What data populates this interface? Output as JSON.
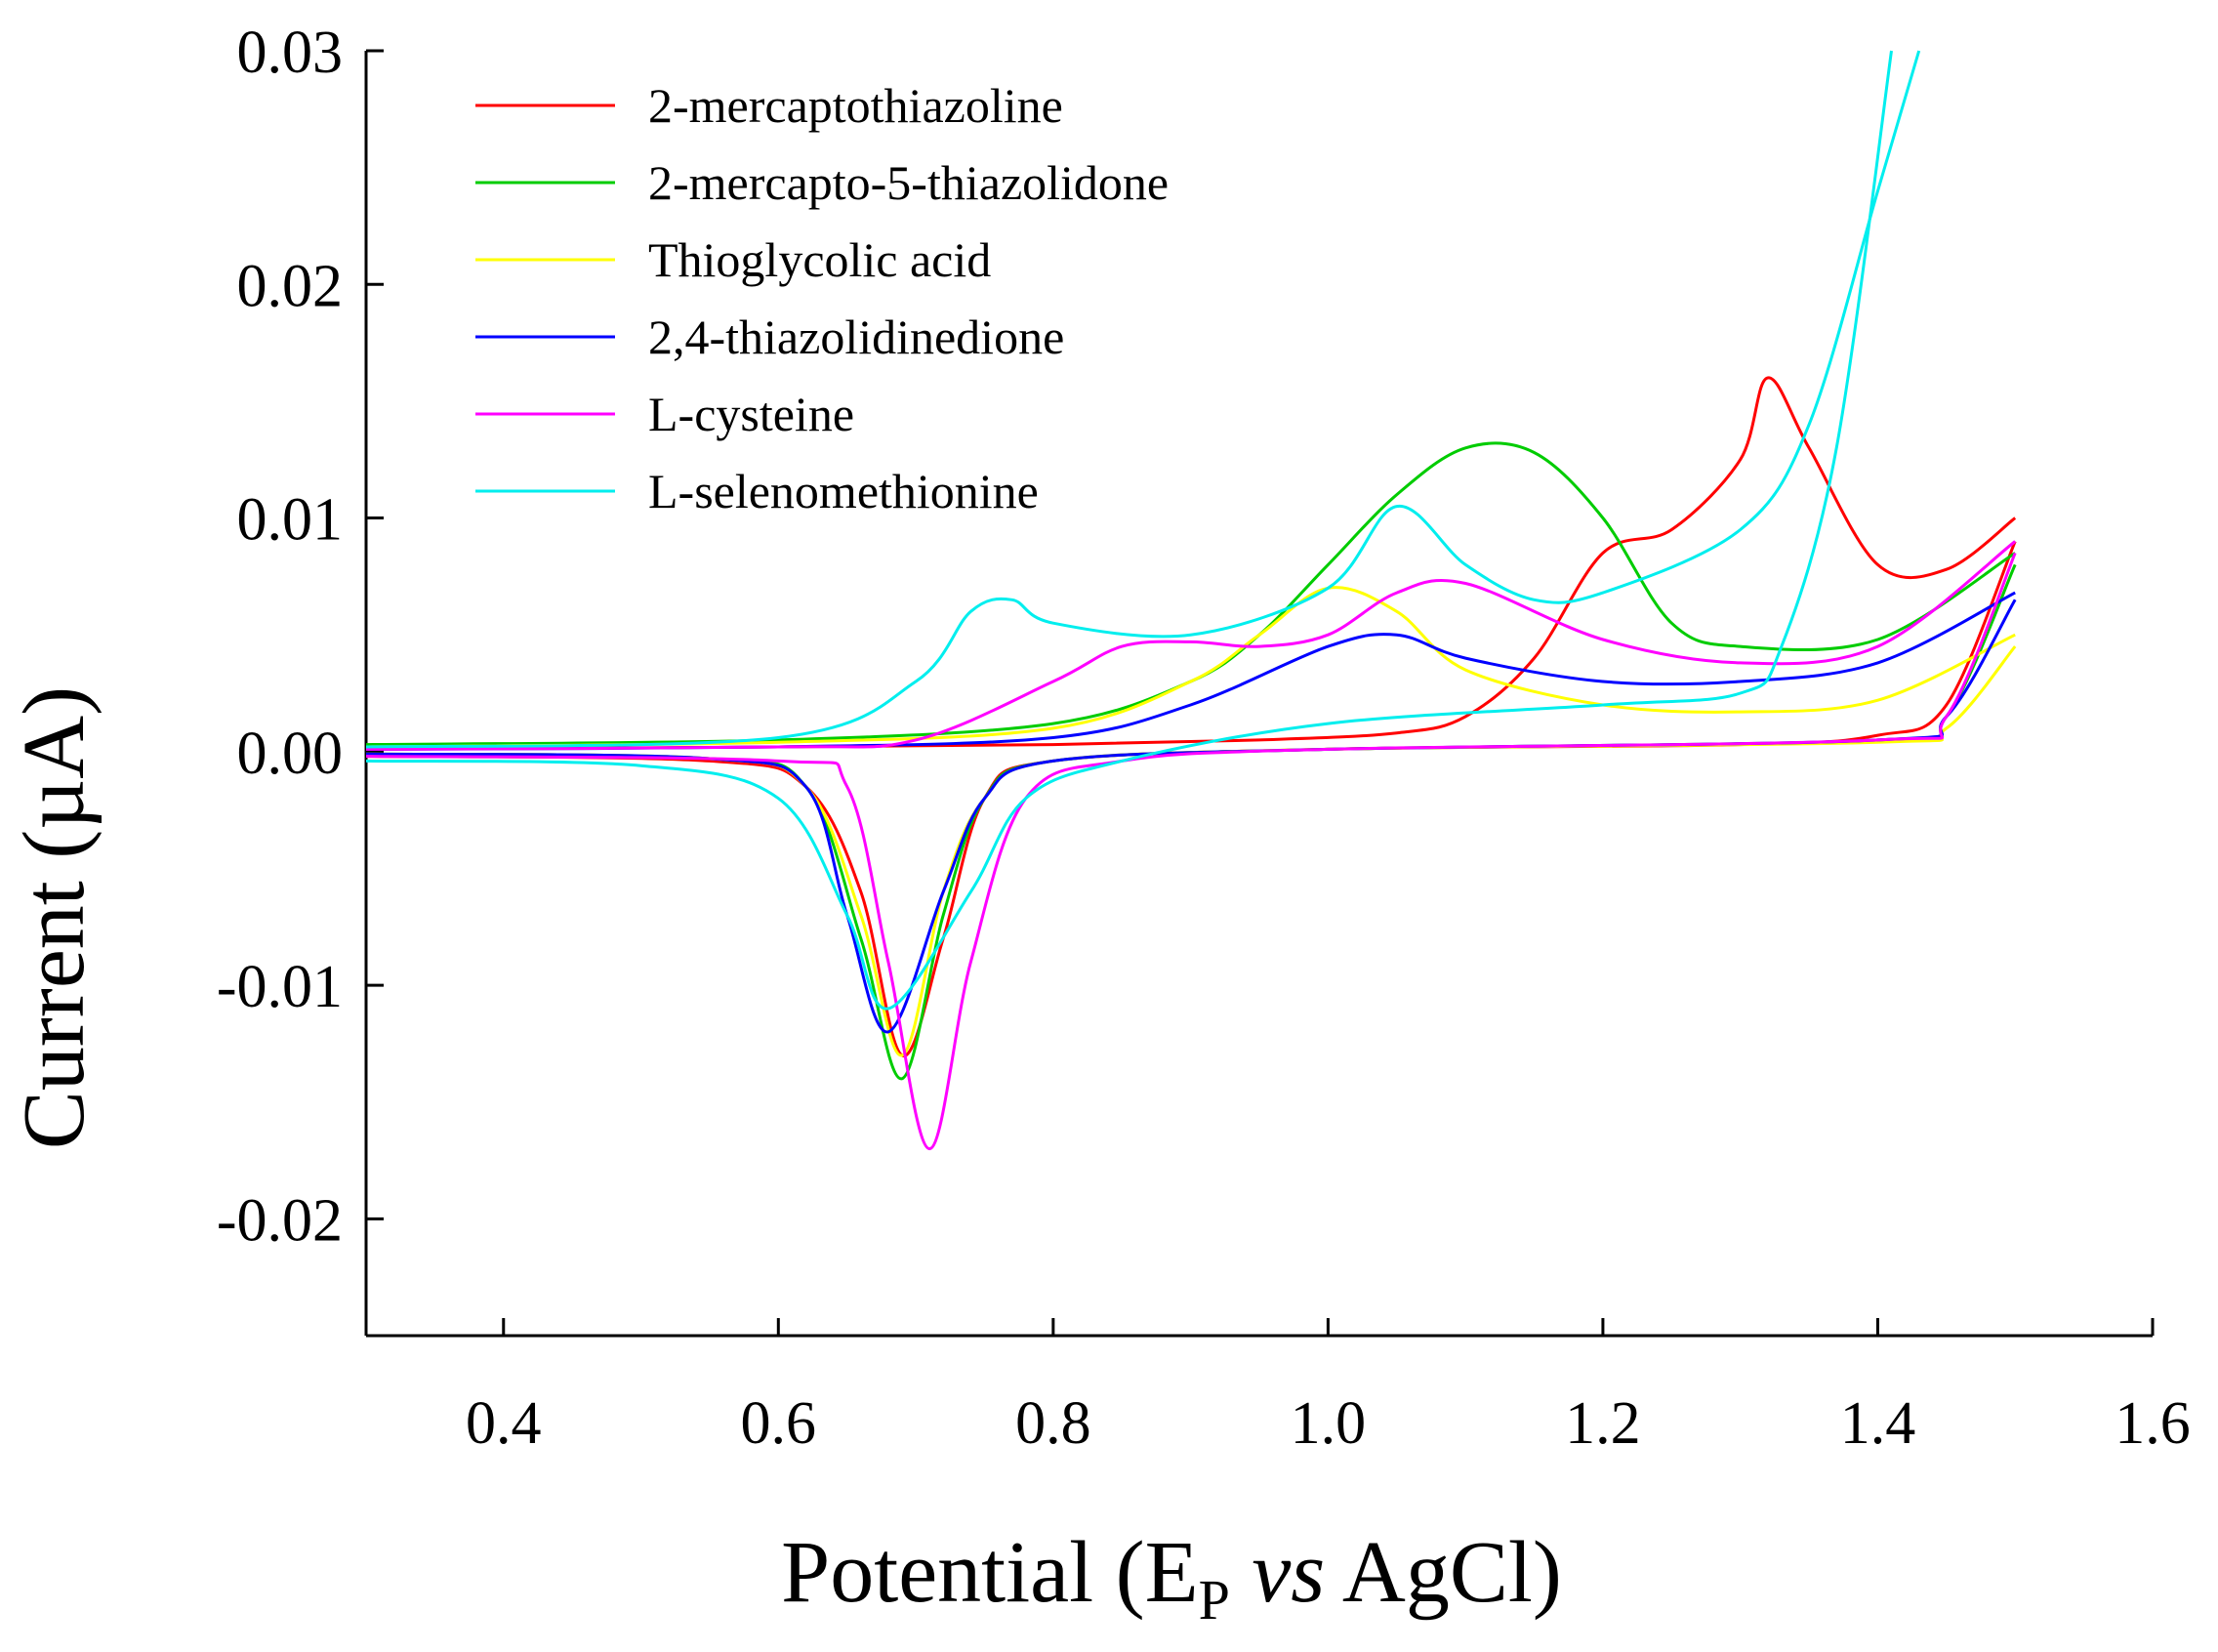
{
  "chart_data": {
    "type": "line",
    "title": "",
    "xlabel_parts": {
      "main": "Potential (E",
      "sub": "P",
      "italic": "vs",
      "end": "AgCl)"
    },
    "ylabel": "Current (µA)",
    "xlim": [
      0.3,
      1.6
    ],
    "ylim": [
      -0.025,
      0.03
    ],
    "x_ticks": [
      "0.4",
      "0.6",
      "0.8",
      "1.0",
      "1.2",
      "1.4",
      "1.6"
    ],
    "y_ticks": [
      "0.03",
      "0.02",
      "0.01",
      "0.00",
      "-0.01",
      "-0.02"
    ],
    "x_tick_values": [
      0.4,
      0.6,
      0.8,
      1.0,
      1.2,
      1.4,
      1.6
    ],
    "y_tick_values": [
      0.03,
      0.02,
      0.01,
      0.0,
      -0.01,
      -0.02
    ],
    "legend_position": "top-left",
    "series": [
      {
        "name": "2-mercaptothiazoline",
        "color": "#ff0000",
        "anodic": [
          [
            0.3,
            0.0001
          ],
          [
            0.6,
            0.0002
          ],
          [
            0.8,
            0.0003
          ],
          [
            0.95,
            0.0005
          ],
          [
            1.05,
            0.0008
          ],
          [
            1.1,
            0.0015
          ],
          [
            1.15,
            0.004
          ],
          [
            1.2,
            0.0085
          ],
          [
            1.25,
            0.0095
          ],
          [
            1.3,
            0.0125
          ],
          [
            1.32,
            0.016
          ],
          [
            1.35,
            0.013
          ],
          [
            1.4,
            0.008
          ],
          [
            1.45,
            0.0078
          ],
          [
            1.5,
            0.01
          ]
        ],
        "cathodic": [
          [
            1.5,
            0.009
          ],
          [
            1.45,
            0.002
          ],
          [
            1.4,
            0.0007
          ],
          [
            1.3,
            0.0003
          ],
          [
            1.0,
            0.0001
          ],
          [
            0.8,
            -0.0004
          ],
          [
            0.75,
            -0.002
          ],
          [
            0.72,
            -0.008
          ],
          [
            0.69,
            -0.013
          ],
          [
            0.66,
            -0.006
          ],
          [
            0.62,
            -0.0015
          ],
          [
            0.55,
            -0.0004
          ],
          [
            0.3,
            -0.0002
          ]
        ]
      },
      {
        "name": "2-mercapto-5-thiazolidone",
        "color": "#00cc00",
        "anodic": [
          [
            0.3,
            0.0003
          ],
          [
            0.6,
            0.0005
          ],
          [
            0.8,
            0.0012
          ],
          [
            0.9,
            0.003
          ],
          [
            0.95,
            0.005
          ],
          [
            1.0,
            0.008
          ],
          [
            1.05,
            0.011
          ],
          [
            1.1,
            0.013
          ],
          [
            1.15,
            0.0128
          ],
          [
            1.2,
            0.01
          ],
          [
            1.25,
            0.0055
          ],
          [
            1.3,
            0.0045
          ],
          [
            1.4,
            0.0048
          ],
          [
            1.5,
            0.0085
          ]
        ],
        "cathodic": [
          [
            1.5,
            0.008
          ],
          [
            1.45,
            0.0015
          ],
          [
            1.4,
            0.0005
          ],
          [
            1.0,
            0.0001
          ],
          [
            0.8,
            -0.0004
          ],
          [
            0.75,
            -0.002
          ],
          [
            0.72,
            -0.007
          ],
          [
            0.69,
            -0.014
          ],
          [
            0.66,
            -0.008
          ],
          [
            0.62,
            -0.0015
          ],
          [
            0.55,
            -0.0003
          ],
          [
            0.3,
            -0.0001
          ]
        ]
      },
      {
        "name": "Thioglycolic acid",
        "color": "#ffff00",
        "anodic": [
          [
            0.3,
            0.0002
          ],
          [
            0.6,
            0.0004
          ],
          [
            0.8,
            0.001
          ],
          [
            0.9,
            0.003
          ],
          [
            0.95,
            0.005
          ],
          [
            1.0,
            0.007
          ],
          [
            1.05,
            0.006
          ],
          [
            1.1,
            0.0035
          ],
          [
            1.2,
            0.002
          ],
          [
            1.3,
            0.0017
          ],
          [
            1.4,
            0.0022
          ],
          [
            1.5,
            0.005
          ]
        ],
        "cathodic": [
          [
            1.5,
            0.0045
          ],
          [
            1.45,
            0.001
          ],
          [
            1.4,
            0.0004
          ],
          [
            1.0,
            0.0001
          ],
          [
            0.8,
            -0.0004
          ],
          [
            0.75,
            -0.002
          ],
          [
            0.72,
            -0.006
          ],
          [
            0.69,
            -0.013
          ],
          [
            0.66,
            -0.007
          ],
          [
            0.62,
            -0.0015
          ],
          [
            0.55,
            -0.0003
          ],
          [
            0.3,
            -0.0001
          ]
        ]
      },
      {
        "name": "2,4-thiazolidinedione",
        "color": "#0000ff",
        "anodic": [
          [
            0.3,
            0.0001
          ],
          [
            0.6,
            0.0002
          ],
          [
            0.8,
            0.0006
          ],
          [
            0.9,
            0.002
          ],
          [
            1.0,
            0.0045
          ],
          [
            1.05,
            0.005
          ],
          [
            1.1,
            0.004
          ],
          [
            1.2,
            0.003
          ],
          [
            1.3,
            0.003
          ],
          [
            1.4,
            0.0038
          ],
          [
            1.5,
            0.0068
          ]
        ],
        "cathodic": [
          [
            1.5,
            0.0065
          ],
          [
            1.45,
            0.0015
          ],
          [
            1.4,
            0.0005
          ],
          [
            1.0,
            0.0001
          ],
          [
            0.8,
            -0.0004
          ],
          [
            0.75,
            -0.002
          ],
          [
            0.72,
            -0.006
          ],
          [
            0.68,
            -0.012
          ],
          [
            0.65,
            -0.007
          ],
          [
            0.62,
            -0.0015
          ],
          [
            0.55,
            -0.0003
          ],
          [
            0.3,
            -0.0001
          ]
        ]
      },
      {
        "name": "L-cysteine",
        "color": "#ff00ff",
        "anodic": [
          [
            0.3,
            0.0001
          ],
          [
            0.6,
            0.0002
          ],
          [
            0.7,
            0.0005
          ],
          [
            0.8,
            0.003
          ],
          [
            0.85,
            0.0045
          ],
          [
            0.9,
            0.0047
          ],
          [
            0.95,
            0.0045
          ],
          [
            1.0,
            0.005
          ],
          [
            1.05,
            0.0068
          ],
          [
            1.1,
            0.0072
          ],
          [
            1.2,
            0.0048
          ],
          [
            1.3,
            0.0038
          ],
          [
            1.4,
            0.0045
          ],
          [
            1.5,
            0.009
          ]
        ],
        "cathodic": [
          [
            1.5,
            0.0085
          ],
          [
            1.45,
            0.0015
          ],
          [
            1.4,
            0.0005
          ],
          [
            1.0,
            0.0001
          ],
          [
            0.85,
            -0.0004
          ],
          [
            0.78,
            -0.002
          ],
          [
            0.74,
            -0.009
          ],
          [
            0.71,
            -0.017
          ],
          [
            0.68,
            -0.009
          ],
          [
            0.65,
            -0.0015
          ],
          [
            0.6,
            -0.0004
          ],
          [
            0.3,
            -0.0002
          ]
        ]
      },
      {
        "name": "L-selenomethionine",
        "color": "#00eeee",
        "anodic": [
          [
            0.3,
            0.0002
          ],
          [
            0.6,
            0.0006
          ],
          [
            0.7,
            0.003
          ],
          [
            0.74,
            0.006
          ],
          [
            0.77,
            0.0065
          ],
          [
            0.8,
            0.0055
          ],
          [
            0.9,
            0.005
          ],
          [
            1.0,
            0.007
          ],
          [
            1.05,
            0.0105
          ],
          [
            1.1,
            0.008
          ],
          [
            1.15,
            0.0065
          ],
          [
            1.2,
            0.0068
          ],
          [
            1.3,
            0.0095
          ],
          [
            1.35,
            0.014
          ],
          [
            1.4,
            0.024
          ],
          [
            1.43,
            0.03
          ]
        ],
        "cathodic": [
          [
            1.41,
            0.03
          ],
          [
            1.37,
            0.013
          ],
          [
            1.33,
            0.0045
          ],
          [
            1.3,
            0.0025
          ],
          [
            1.2,
            0.002
          ],
          [
            1.0,
            0.0012
          ],
          [
            0.85,
            -0.0004
          ],
          [
            0.78,
            -0.002
          ],
          [
            0.74,
            -0.006
          ],
          [
            0.68,
            -0.011
          ],
          [
            0.65,
            -0.007
          ],
          [
            0.6,
            -0.002
          ],
          [
            0.5,
            -0.0006
          ],
          [
            0.3,
            -0.0004
          ]
        ]
      }
    ]
  }
}
